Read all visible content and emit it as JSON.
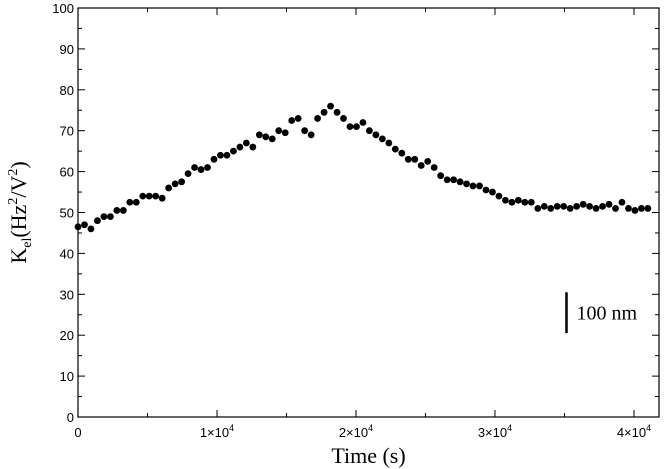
{
  "chart_data": {
    "type": "scatter",
    "title": "",
    "xlabel": "Time (s)",
    "ylabel_parts": {
      "base": "K",
      "sub": "el",
      "open": "(Hz",
      "sup1": "2",
      "mid": "/V",
      "sup2": "2",
      "close": ")"
    },
    "xlim": [
      0,
      41800
    ],
    "ylim": [
      0,
      100
    ],
    "grid": false,
    "legend": "none",
    "x_ticks": [
      {
        "value": 0,
        "label": "0",
        "exp": ""
      },
      {
        "value": 10000,
        "label": "1×10",
        "exp": "4"
      },
      {
        "value": 20000,
        "label": "2×10",
        "exp": "4"
      },
      {
        "value": 30000,
        "label": "3×10",
        "exp": "4"
      },
      {
        "value": 40000,
        "label": "4×10",
        "exp": "4"
      }
    ],
    "y_ticks": [
      {
        "value": 0,
        "label": "0"
      },
      {
        "value": 10,
        "label": "10"
      },
      {
        "value": 20,
        "label": "20"
      },
      {
        "value": 30,
        "label": "30"
      },
      {
        "value": 40,
        "label": "40"
      },
      {
        "value": 50,
        "label": "50"
      },
      {
        "value": 60,
        "label": "60"
      },
      {
        "value": 70,
        "label": "70"
      },
      {
        "value": 80,
        "label": "80"
      },
      {
        "value": 90,
        "label": "90"
      },
      {
        "value": 100,
        "label": "100"
      }
    ],
    "annotation": {
      "label": "100 nm",
      "value_top": 30.5,
      "value_bottom": 20.5,
      "x": 35000
    },
    "points": [
      [
        0,
        46.5
      ],
      [
        500,
        47
      ],
      [
        1000,
        46
      ],
      [
        1500,
        48
      ],
      [
        2000,
        49
      ],
      [
        2500,
        49
      ],
      [
        3000,
        50.5
      ],
      [
        3500,
        50.5
      ],
      [
        4000,
        52.5
      ],
      [
        4500,
        52.5
      ],
      [
        5000,
        54
      ],
      [
        5500,
        54
      ],
      [
        6000,
        54
      ],
      [
        6500,
        53.5
      ],
      [
        7000,
        56
      ],
      [
        7500,
        57
      ],
      [
        8000,
        57.5
      ],
      [
        8500,
        59.5
      ],
      [
        9000,
        61
      ],
      [
        9500,
        60.5
      ],
      [
        10000,
        61
      ],
      [
        10500,
        63
      ],
      [
        11000,
        64
      ],
      [
        11500,
        64
      ],
      [
        12000,
        65
      ],
      [
        12500,
        66
      ],
      [
        13000,
        67
      ],
      [
        13500,
        66
      ],
      [
        14000,
        69
      ],
      [
        14500,
        68.5
      ],
      [
        15000,
        68
      ],
      [
        15500,
        70
      ],
      [
        16000,
        69.5
      ],
      [
        16500,
        72.5
      ],
      [
        17000,
        73
      ],
      [
        17500,
        70
      ],
      [
        18000,
        69
      ],
      [
        18500,
        73
      ],
      [
        19000,
        74.5
      ],
      [
        19500,
        76
      ],
      [
        20000,
        74.5
      ],
      [
        20500,
        73
      ],
      [
        21000,
        71
      ],
      [
        21500,
        71
      ],
      [
        22000,
        72
      ],
      [
        22500,
        70
      ],
      [
        23000,
        69
      ],
      [
        23500,
        68
      ],
      [
        24000,
        67
      ],
      [
        24500,
        65.5
      ],
      [
        25000,
        64.5
      ],
      [
        25500,
        63
      ],
      [
        26000,
        63
      ],
      [
        26500,
        61.5
      ],
      [
        27000,
        62.5
      ],
      [
        27500,
        61
      ],
      [
        28000,
        59
      ],
      [
        28500,
        58
      ],
      [
        29000,
        58
      ],
      [
        29500,
        57.5
      ],
      [
        30000,
        57
      ],
      [
        30500,
        56.5
      ],
      [
        31000,
        56.5
      ],
      [
        31500,
        55.5
      ],
      [
        32000,
        55
      ],
      [
        32500,
        54
      ],
      [
        33000,
        53
      ],
      [
        33500,
        52.5
      ],
      [
        34000,
        53
      ],
      [
        34500,
        52.5
      ],
      [
        35000,
        52.5
      ],
      [
        35500,
        51
      ],
      [
        36000,
        51.5
      ],
      [
        36500,
        51
      ],
      [
        37000,
        51.5
      ],
      [
        37500,
        51.5
      ],
      [
        38000,
        51
      ],
      [
        38500,
        51.5
      ],
      [
        39000,
        52
      ],
      [
        39500,
        51.5
      ],
      [
        40000,
        51
      ],
      [
        40500,
        51.5
      ],
      [
        41000,
        52
      ],
      [
        41500,
        51
      ],
      [
        42000,
        52.5
      ],
      [
        42500,
        51
      ],
      [
        43000,
        50.5
      ],
      [
        43500,
        51
      ],
      [
        44000,
        51
      ]
    ]
  }
}
